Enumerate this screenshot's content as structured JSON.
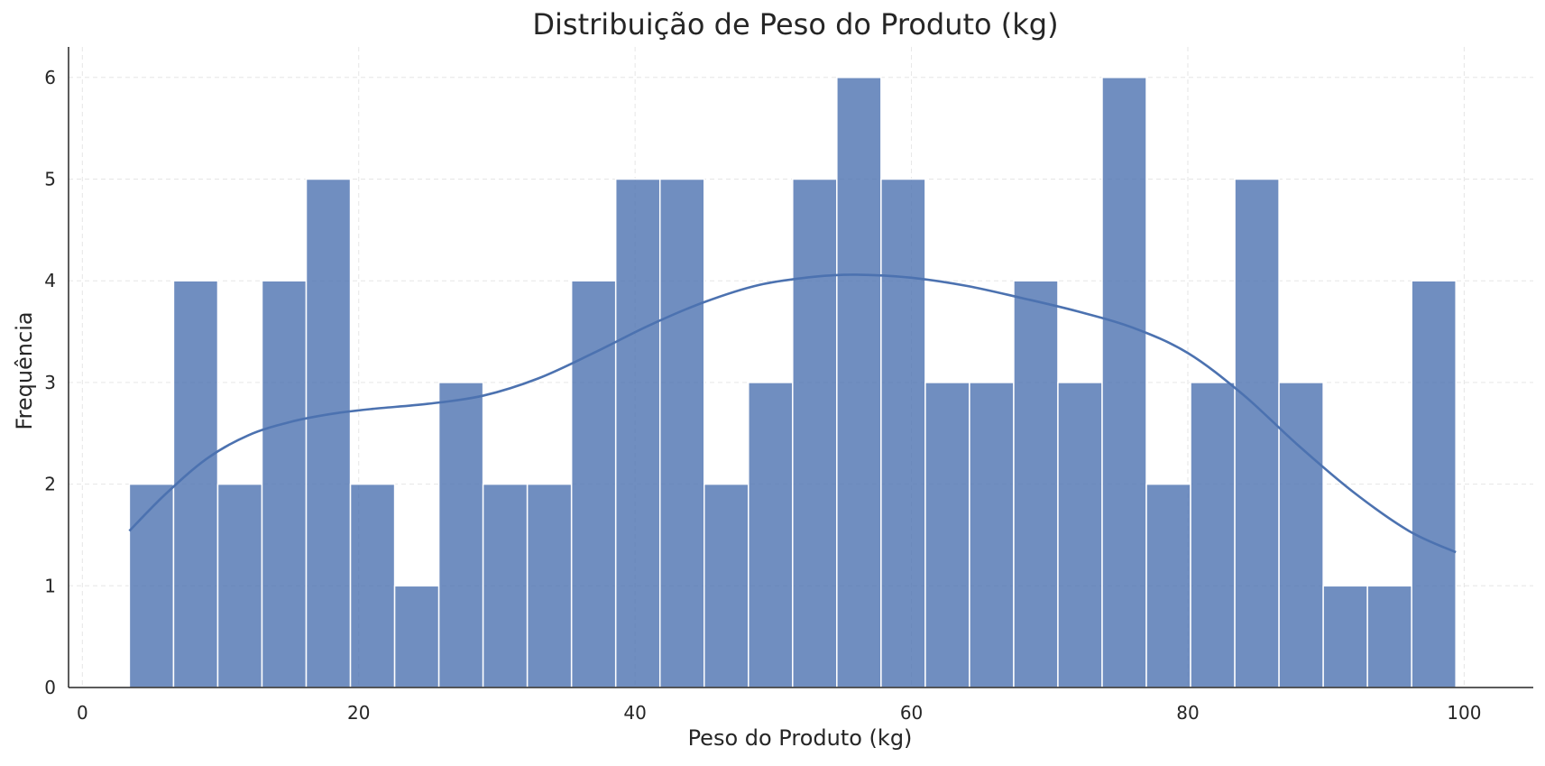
{
  "chart_data": {
    "type": "histogram",
    "title": "Distribuição de Peso do Produto (kg)",
    "xlabel": "Peso do Produto (kg)",
    "ylabel": "Frequência",
    "xlim": [
      -1,
      105
    ],
    "ylim": [
      0,
      6.3
    ],
    "xticks": [
      0,
      20,
      40,
      60,
      80,
      100
    ],
    "yticks": [
      0,
      1,
      2,
      3,
      4,
      5,
      6
    ],
    "grid": true,
    "colors": {
      "bar": "#4c72b0",
      "kde": "#4c72b0"
    },
    "bins": [
      {
        "x0": 3.4,
        "x1": 6.6,
        "count": 2
      },
      {
        "x0": 6.6,
        "x1": 9.8,
        "count": 4
      },
      {
        "x0": 9.8,
        "x1": 13.0,
        "count": 2
      },
      {
        "x0": 13.0,
        "x1": 16.2,
        "count": 4
      },
      {
        "x0": 16.2,
        "x1": 19.4,
        "count": 5
      },
      {
        "x0": 19.4,
        "x1": 22.6,
        "count": 2
      },
      {
        "x0": 22.6,
        "x1": 25.8,
        "count": 1
      },
      {
        "x0": 25.8,
        "x1": 29.0,
        "count": 3
      },
      {
        "x0": 29.0,
        "x1": 32.2,
        "count": 2
      },
      {
        "x0": 32.2,
        "x1": 35.4,
        "count": 2
      },
      {
        "x0": 35.4,
        "x1": 38.6,
        "count": 4
      },
      {
        "x0": 38.6,
        "x1": 41.8,
        "count": 5
      },
      {
        "x0": 41.8,
        "x1": 45.0,
        "count": 5
      },
      {
        "x0": 45.0,
        "x1": 48.2,
        "count": 2
      },
      {
        "x0": 48.2,
        "x1": 51.4,
        "count": 3
      },
      {
        "x0": 51.4,
        "x1": 54.6,
        "count": 5
      },
      {
        "x0": 54.6,
        "x1": 57.8,
        "count": 6
      },
      {
        "x0": 57.8,
        "x1": 61.0,
        "count": 5
      },
      {
        "x0": 61.0,
        "x1": 64.2,
        "count": 3
      },
      {
        "x0": 64.2,
        "x1": 67.4,
        "count": 3
      },
      {
        "x0": 67.4,
        "x1": 70.6,
        "count": 4
      },
      {
        "x0": 70.6,
        "x1": 73.8,
        "count": 3
      },
      {
        "x0": 73.8,
        "x1": 77.0,
        "count": 6
      },
      {
        "x0": 77.0,
        "x1": 80.2,
        "count": 2
      },
      {
        "x0": 80.2,
        "x1": 83.4,
        "count": 3
      },
      {
        "x0": 83.4,
        "x1": 86.6,
        "count": 5
      },
      {
        "x0": 86.6,
        "x1": 89.8,
        "count": 3
      },
      {
        "x0": 89.8,
        "x1": 93.0,
        "count": 1
      },
      {
        "x0": 93.0,
        "x1": 96.2,
        "count": 1
      },
      {
        "x0": 96.2,
        "x1": 99.4,
        "count": 4
      }
    ],
    "kde_curve": {
      "x": [
        3.4,
        6,
        9,
        12,
        15,
        18,
        21,
        25,
        29,
        33,
        37,
        41,
        45,
        49,
        53,
        56,
        60,
        64,
        68,
        72,
        76,
        80,
        84,
        88,
        92,
        96,
        99.4
      ],
      "y": [
        1.54,
        1.9,
        2.25,
        2.48,
        2.61,
        2.69,
        2.74,
        2.79,
        2.87,
        3.04,
        3.29,
        3.56,
        3.79,
        3.96,
        4.04,
        4.06,
        4.03,
        3.95,
        3.83,
        3.7,
        3.54,
        3.29,
        2.88,
        2.38,
        1.92,
        1.54,
        1.33
      ]
    }
  }
}
